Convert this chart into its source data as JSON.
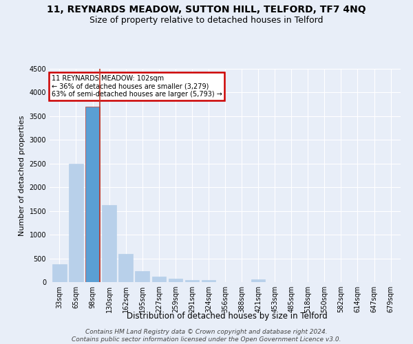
{
  "title1": "11, REYNARDS MEADOW, SUTTON HILL, TELFORD, TF7 4NQ",
  "title2": "Size of property relative to detached houses in Telford",
  "xlabel": "Distribution of detached houses by size in Telford",
  "ylabel": "Number of detached properties",
  "footer1": "Contains HM Land Registry data © Crown copyright and database right 2024.",
  "footer2": "Contains public sector information licensed under the Open Government Licence v3.0.",
  "annotation_line1": "11 REYNARDS MEADOW: 102sqm",
  "annotation_line2": "← 36% of detached houses are smaller (3,279)",
  "annotation_line3": "63% of semi-detached houses are larger (5,793) →",
  "categories": [
    "33sqm",
    "65sqm",
    "98sqm",
    "130sqm",
    "162sqm",
    "195sqm",
    "227sqm",
    "259sqm",
    "291sqm",
    "324sqm",
    "356sqm",
    "388sqm",
    "421sqm",
    "453sqm",
    "485sqm",
    "518sqm",
    "550sqm",
    "582sqm",
    "614sqm",
    "647sqm",
    "679sqm"
  ],
  "values": [
    375,
    2500,
    3700,
    1625,
    590,
    230,
    110,
    70,
    50,
    40,
    0,
    0,
    65,
    0,
    0,
    0,
    0,
    0,
    0,
    0,
    0
  ],
  "highlight_index": 2,
  "bar_color": "#b8d0ea",
  "highlight_color": "#5a9fd4",
  "highlight_edge_color": "#c0392b",
  "ylim": [
    0,
    4500
  ],
  "yticks": [
    0,
    500,
    1000,
    1500,
    2000,
    2500,
    3000,
    3500,
    4000,
    4500
  ],
  "bg_color": "#e8eef8",
  "grid_color": "#ffffff",
  "annotation_box_color": "#ffffff",
  "annotation_box_edge": "#cc0000",
  "title1_fontsize": 10,
  "title2_fontsize": 9,
  "axis_fontsize": 8,
  "tick_fontsize": 7,
  "footer_fontsize": 6.5
}
